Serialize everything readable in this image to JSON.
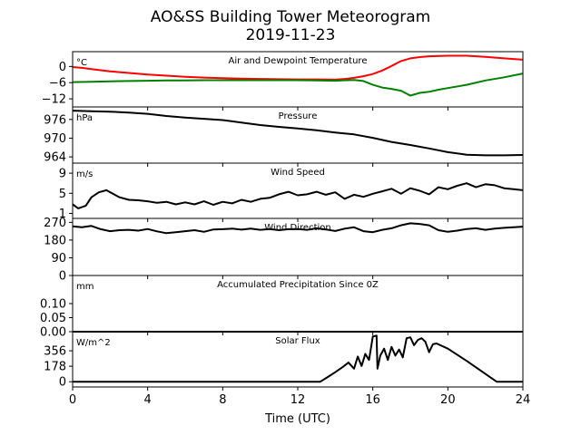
{
  "figure": {
    "title_line1": "AO&SS Building Tower Meteorogram",
    "title_line2": "2019-11-23",
    "xlabel": "Time (UTC)"
  },
  "chart_data": [
    {
      "type": "line",
      "panel": "temperature",
      "title": "Air and Dewpoint Temperature",
      "unit_label": "°C",
      "yticks": [
        0,
        -6,
        -12
      ],
      "ytick_labels": [
        "0",
        "−6",
        "−12"
      ],
      "ylim": [
        -15,
        5.5
      ],
      "xlim": [
        0,
        24
      ],
      "series": [
        {
          "color": "#ff0000",
          "x": [
            0,
            0.5,
            1,
            2,
            3,
            4,
            5,
            6,
            7,
            8,
            9,
            10,
            11,
            12,
            13,
            14,
            14.5,
            15,
            15.5,
            16,
            16.5,
            17,
            17.5,
            18,
            18.5,
            19,
            20,
            21,
            22,
            23,
            24
          ],
          "y": [
            -0.2,
            -0.5,
            -1.0,
            -1.8,
            -2.4,
            -3.0,
            -3.4,
            -3.8,
            -4.1,
            -4.3,
            -4.5,
            -4.6,
            -4.7,
            -4.8,
            -4.8,
            -4.9,
            -4.6,
            -4.2,
            -3.6,
            -2.8,
            -1.5,
            0.2,
            2.0,
            3.0,
            3.5,
            3.8,
            4.0,
            4.0,
            3.6,
            3.0,
            2.5
          ]
        },
        {
          "color": "#008000",
          "x": [
            0,
            1,
            2,
            3,
            4,
            5,
            6,
            7,
            8,
            9,
            10,
            11,
            12,
            13,
            14,
            15,
            15.5,
            16,
            16.5,
            17,
            17.5,
            18,
            18.5,
            19,
            19.5,
            20,
            21,
            22,
            23,
            24
          ],
          "y": [
            -5.8,
            -5.7,
            -5.5,
            -5.4,
            -5.3,
            -5.2,
            -5.2,
            -5.1,
            -5.1,
            -5.1,
            -5.1,
            -5.1,
            -5.1,
            -5.2,
            -5.3,
            -5.0,
            -5.4,
            -6.8,
            -7.8,
            -8.3,
            -9.0,
            -10.8,
            -9.8,
            -9.4,
            -8.6,
            -8.0,
            -6.8,
            -5.2,
            -4.0,
            -2.6
          ]
        }
      ]
    },
    {
      "type": "line",
      "panel": "pressure",
      "title": "Pressure",
      "unit_label": "hPa",
      "yticks": [
        976,
        970,
        964
      ],
      "ytick_labels": [
        "976",
        "970",
        "964"
      ],
      "ylim": [
        962,
        980
      ],
      "xlim": [
        0,
        24
      ],
      "series": [
        {
          "color": "#000000",
          "x": [
            0,
            1,
            2,
            3,
            4,
            5,
            6,
            7,
            8,
            9,
            10,
            11,
            12,
            13,
            14,
            15,
            16,
            17,
            18,
            19,
            20,
            21,
            22,
            23,
            24
          ],
          "y": [
            978.8,
            978.6,
            978.5,
            978.2,
            977.8,
            977.1,
            976.6,
            976.2,
            975.8,
            975.0,
            974.2,
            973.6,
            973.1,
            972.5,
            971.8,
            971.2,
            970.1,
            968.8,
            967.8,
            966.7,
            965.5,
            964.7,
            964.5,
            964.5,
            964.6
          ]
        }
      ]
    },
    {
      "type": "line",
      "panel": "wind_speed",
      "title": "Wind Speed",
      "unit_label": "m/s",
      "yticks": [
        9,
        5,
        1
      ],
      "ytick_labels": [
        "9",
        "5",
        "1"
      ],
      "ylim": [
        0,
        11
      ],
      "xlim": [
        0,
        24
      ],
      "series": [
        {
          "color": "#000000",
          "x": [
            0,
            0.3,
            0.7,
            1.0,
            1.4,
            1.8,
            2.1,
            2.5,
            3.0,
            3.5,
            4.0,
            4.5,
            5.0,
            5.5,
            6.0,
            6.5,
            7.0,
            7.5,
            8.0,
            8.5,
            9.0,
            9.5,
            10.0,
            10.5,
            11.0,
            11.5,
            12.0,
            12.5,
            13.0,
            13.5,
            14.0,
            14.5,
            15.0,
            15.5,
            16.0,
            16.5,
            17.0,
            17.5,
            18.0,
            18.5,
            19.0,
            19.5,
            20.0,
            20.5,
            21.0,
            21.5,
            22.0,
            22.5,
            23.0,
            23.5,
            24.0
          ],
          "y": [
            2.8,
            2.0,
            2.5,
            4.2,
            5.2,
            5.6,
            5.0,
            4.2,
            3.7,
            3.6,
            3.4,
            3.1,
            3.3,
            2.8,
            3.2,
            2.8,
            3.4,
            2.7,
            3.3,
            3.0,
            3.7,
            3.3,
            3.9,
            4.1,
            4.8,
            5.3,
            4.6,
            4.8,
            5.3,
            4.7,
            5.2,
            3.9,
            4.7,
            4.3,
            4.9,
            5.4,
            5.9,
            4.9,
            6.0,
            5.5,
            4.8,
            6.2,
            5.8,
            6.5,
            7.0,
            6.2,
            6.8,
            6.6,
            6.0,
            5.8,
            5.6
          ]
        }
      ]
    },
    {
      "type": "line",
      "panel": "wind_direction",
      "title": "Wind Direction",
      "unit_label": "",
      "yticks": [
        270,
        180,
        90,
        0
      ],
      "ytick_labels": [
        "270",
        "180",
        "90",
        "0"
      ],
      "ylim": [
        0,
        290
      ],
      "xlim": [
        0,
        24
      ],
      "series": [
        {
          "color": "#000000",
          "x": [
            0,
            0.5,
            1,
            1.5,
            2,
            2.5,
            3,
            3.5,
            4,
            4.5,
            5,
            5.5,
            6,
            6.5,
            7,
            7.5,
            8,
            8.5,
            9,
            9.5,
            10,
            10.5,
            11,
            11.5,
            12,
            12.5,
            13,
            13.5,
            14,
            14.5,
            15,
            15.5,
            16,
            16.5,
            17,
            17.5,
            18,
            18.5,
            19,
            19.5,
            20,
            20.5,
            21,
            21.5,
            22,
            22.5,
            23,
            23.5,
            24
          ],
          "y": [
            250,
            245,
            252,
            235,
            225,
            230,
            232,
            228,
            236,
            224,
            215,
            220,
            225,
            230,
            222,
            234,
            235,
            238,
            233,
            238,
            232,
            236,
            230,
            235,
            236,
            232,
            240,
            234,
            226,
            238,
            245,
            225,
            220,
            232,
            240,
            255,
            265,
            262,
            255,
            230,
            222,
            228,
            236,
            240,
            232,
            238,
            242,
            245,
            248
          ]
        }
      ]
    },
    {
      "type": "line",
      "panel": "precipitation",
      "title": "Accumulated Precipitation Since 0Z",
      "unit_label": "mm",
      "yticks": [
        0.1,
        0.05,
        0.0
      ],
      "ytick_labels": [
        "0.10",
        "0.05",
        "0.00"
      ],
      "ylim": [
        0,
        0.2
      ],
      "xlim": [
        0,
        24
      ],
      "series": [
        {
          "color": "#000000",
          "x": [
            0,
            24
          ],
          "y": [
            0,
            0
          ]
        }
      ]
    },
    {
      "type": "line",
      "panel": "solar_flux",
      "title": "Solar Flux",
      "unit_label": "W/m^2",
      "yticks": [
        356,
        178,
        0
      ],
      "ytick_labels": [
        "356",
        "178",
        "0"
      ],
      "ylim": [
        -60,
        575
      ],
      "xlim": [
        0,
        24
      ],
      "series": [
        {
          "color": "#000000",
          "x": [
            0,
            13.2,
            13.6,
            14.0,
            14.4,
            14.7,
            15.0,
            15.2,
            15.4,
            15.6,
            15.8,
            16.0,
            16.2,
            16.25,
            16.4,
            16.6,
            16.8,
            17.0,
            17.2,
            17.4,
            17.6,
            17.8,
            18.0,
            18.2,
            18.4,
            18.6,
            18.8,
            19.0,
            19.2,
            19.4,
            20.0,
            21.0,
            22.0,
            22.6,
            24.0
          ],
          "y": [
            0,
            0,
            55,
            110,
            170,
            220,
            150,
            290,
            180,
            320,
            250,
            520,
            530,
            150,
            300,
            380,
            250,
            400,
            300,
            370,
            280,
            500,
            510,
            420,
            480,
            500,
            460,
            340,
            430,
            440,
            380,
            240,
            90,
            0,
            0
          ]
        }
      ]
    }
  ]
}
